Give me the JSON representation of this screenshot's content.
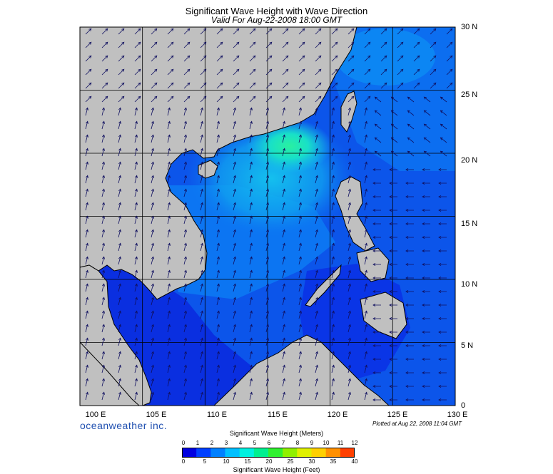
{
  "header": {
    "title": "Significant Wave Height with Wave Direction",
    "subtitle": "Valid For Aug-22-2008 18:00 GMT"
  },
  "map": {
    "region": "South China Sea",
    "lon_range": [
      100,
      130
    ],
    "lat_range": [
      0,
      30
    ],
    "lat_labels": [
      "30 N",
      "25 N",
      "20 N",
      "15 N",
      "10 N",
      "5 N",
      "0"
    ],
    "lon_labels": [
      "100 E",
      "105 E",
      "110 E",
      "115 E",
      "120 E",
      "125 E",
      "130 E"
    ],
    "grid_step_deg": 5,
    "land_color": "#c0c0c0",
    "ocean_colors": {
      "low": "#0a2fe0",
      "mid": "#0c6ef0",
      "high": "#18c8e8",
      "peak": "#1ef0a0"
    },
    "wave_direction": "arrows mostly toward north/northeast; westward over the Philippine Sea"
  },
  "branding": {
    "logo": "oceanweather inc.",
    "plotted": "Plotted at Aug 22, 2008 11:04 GMT"
  },
  "legend": {
    "meters_title": "Significant Wave Height (Meters)",
    "feet_title": "Significant Wave Height (Feet)",
    "meters_ticks": [
      "0",
      "1",
      "2",
      "3",
      "4",
      "5",
      "6",
      "7",
      "8",
      "9",
      "10",
      "11",
      "12"
    ],
    "feet_ticks": [
      "0",
      "5",
      "10",
      "15",
      "20",
      "25",
      "30",
      "35",
      "40"
    ],
    "colors": [
      "#0000e0",
      "#0040ff",
      "#0080ff",
      "#00c0ff",
      "#00f0e0",
      "#00f090",
      "#30f030",
      "#90f000",
      "#e0f000",
      "#ffd000",
      "#ff9000",
      "#ff4000"
    ]
  }
}
